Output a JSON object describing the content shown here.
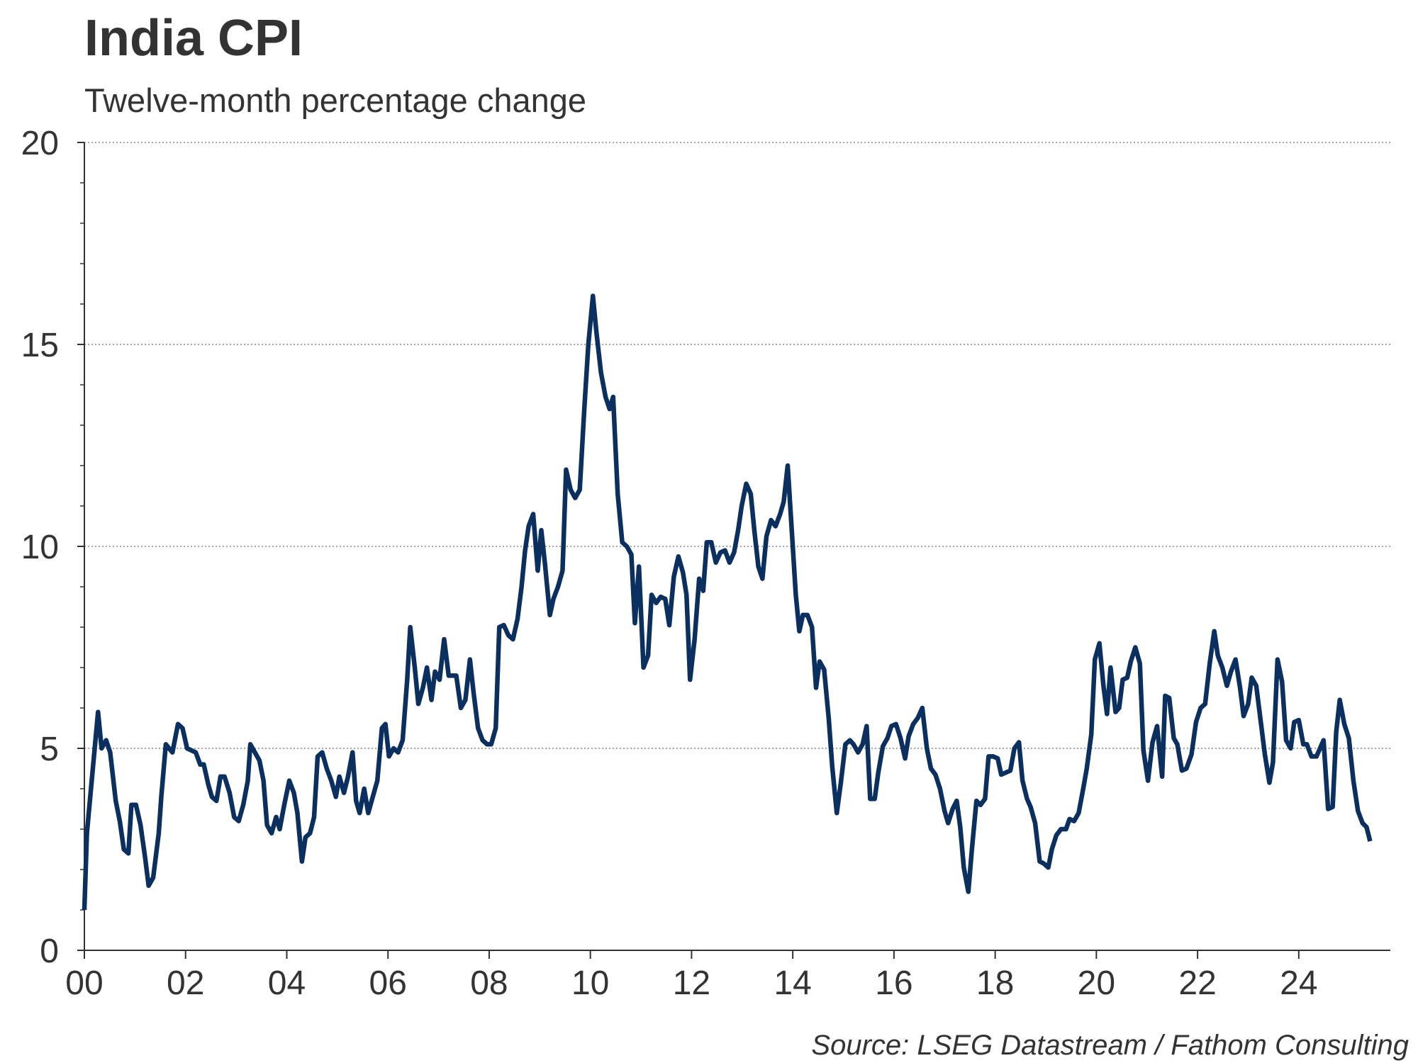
{
  "chart_data": {
    "type": "line",
    "title": "India CPI",
    "subtitle": "Twelve-month percentage change",
    "source": "Source: LSEG Datastream / Fathom Consulting",
    "color": "#0b2f5e",
    "grid": true,
    "xlim": [
      2000,
      2025.81
    ],
    "ylim": [
      0,
      20
    ],
    "yticks": [
      0,
      5,
      10,
      15,
      20
    ],
    "yminorticks": [
      1,
      2,
      3,
      4,
      6,
      7,
      8,
      9,
      11,
      12,
      13,
      14,
      16,
      17,
      18,
      19
    ],
    "xticks": [
      {
        "value": 2000,
        "label": "00"
      },
      {
        "value": 2002,
        "label": "02"
      },
      {
        "value": 2004,
        "label": "04"
      },
      {
        "value": 2006,
        "label": "06"
      },
      {
        "value": 2008,
        "label": "08"
      },
      {
        "value": 2010,
        "label": "10"
      },
      {
        "value": 2012,
        "label": "12"
      },
      {
        "value": 2014,
        "label": "14"
      },
      {
        "value": 2016,
        "label": "16"
      },
      {
        "value": 2018,
        "label": "18"
      },
      {
        "value": 2020,
        "label": "20"
      },
      {
        "value": 2022,
        "label": "22"
      },
      {
        "value": 2024,
        "label": "24"
      }
    ],
    "x": [
      2000.0,
      2000.05,
      2000.27,
      2000.34,
      2000.43,
      2000.51,
      2000.62,
      2000.7,
      2000.78,
      2000.87,
      2000.93,
      2001.02,
      2001.11,
      2001.2,
      2001.27,
      2001.36,
      2001.47,
      2001.52,
      2001.61,
      2001.74,
      2001.85,
      2001.94,
      2002.03,
      2002.2,
      2002.29,
      2002.36,
      2002.45,
      2002.52,
      2002.61,
      2002.69,
      2002.77,
      2002.87,
      2002.96,
      2003.05,
      2003.14,
      2003.23,
      2003.28,
      2003.37,
      2003.46,
      2003.54,
      2003.61,
      2003.7,
      2003.79,
      2003.86,
      2003.95,
      2004.05,
      2004.14,
      2004.21,
      2004.3,
      2004.37,
      2004.46,
      2004.54,
      2004.61,
      2004.7,
      2004.79,
      2004.88,
      2004.97,
      2005.04,
      2005.13,
      2005.21,
      2005.3,
      2005.37,
      2005.44,
      2005.53,
      2005.61,
      2005.7,
      2005.79,
      2005.88,
      2005.95,
      2006.02,
      2006.11,
      2006.2,
      2006.29,
      2006.38,
      2006.44,
      2006.53,
      2006.6,
      2006.69,
      2006.77,
      2006.86,
      2006.93,
      2007.02,
      2007.11,
      2007.2,
      2007.27,
      2007.35,
      2007.44,
      2007.53,
      2007.62,
      2007.69,
      2007.78,
      2007.87,
      2007.96,
      2008.04,
      2008.13,
      2008.2,
      2008.29,
      2008.38,
      2008.47,
      2008.56,
      2008.64,
      2008.71,
      2008.78,
      2008.87,
      2008.96,
      2009.03,
      2009.1,
      2009.2,
      2009.27,
      2009.36,
      2009.45,
      2009.52,
      2009.61,
      2009.7,
      2009.79,
      2009.88,
      2009.96,
      2010.05,
      2010.12,
      2010.21,
      2010.3,
      2010.38,
      2010.45,
      2010.54,
      2010.63,
      2010.72,
      2010.81,
      2010.88,
      2010.96,
      2011.05,
      2011.14,
      2011.21,
      2011.3,
      2011.39,
      2011.48,
      2011.56,
      2011.65,
      2011.74,
      2011.83,
      2011.9,
      2011.97,
      2012.06,
      2012.15,
      2012.23,
      2012.3,
      2012.39,
      2012.48,
      2012.57,
      2012.66,
      2012.75,
      2012.84,
      2012.92,
      2012.99,
      2013.08,
      2013.17,
      2013.24,
      2013.32,
      2013.4,
      2013.48,
      2013.57,
      2013.66,
      2013.75,
      2013.82,
      2013.9,
      2013.97,
      2014.06,
      2014.13,
      2014.2,
      2014.29,
      2014.38,
      2014.46,
      2014.53,
      2014.62,
      2014.71,
      2014.78,
      2014.87,
      2014.95,
      2015.04,
      2015.13,
      2015.2,
      2015.29,
      2015.38,
      2015.46,
      2015.53,
      2015.62,
      2015.69,
      2015.78,
      2015.87,
      2015.95,
      2016.04,
      2016.13,
      2016.22,
      2016.29,
      2016.38,
      2016.47,
      2016.56,
      2016.65,
      2016.73,
      2016.82,
      2016.91,
      2017.0,
      2017.07,
      2017.16,
      2017.24,
      2017.31,
      2017.38,
      2017.47,
      2017.54,
      2017.63,
      2017.71,
      2017.8,
      2017.87,
      2017.96,
      2018.05,
      2018.12,
      2018.21,
      2018.3,
      2018.38,
      2018.47,
      2018.54,
      2018.63,
      2018.7,
      2018.79,
      2018.88,
      2018.96,
      2019.05,
      2019.12,
      2019.21,
      2019.3,
      2019.4,
      2019.47,
      2019.56,
      2019.65,
      2019.74,
      2019.81,
      2019.9,
      2019.97,
      2020.06,
      2020.14,
      2020.21,
      2020.28,
      2020.38,
      2020.45,
      2020.52,
      2020.61,
      2020.68,
      2020.77,
      2020.86,
      2020.93,
      2021.02,
      2021.11,
      2021.2,
      2021.3,
      2021.36,
      2021.44,
      2021.53,
      2021.6,
      2021.69,
      2021.78,
      2021.88,
      2021.97,
      2022.06,
      2022.15,
      2022.24,
      2022.33,
      2022.4,
      2022.49,
      2022.58,
      2022.66,
      2022.75,
      2022.84,
      2022.91,
      2023.0,
      2023.07,
      2023.16,
      2023.26,
      2023.33,
      2023.42,
      2023.49,
      2023.58,
      2023.67,
      2023.75,
      2023.84,
      2023.91,
      2024.0,
      2024.09,
      2024.16,
      2024.25,
      2024.35,
      2024.42,
      2024.49,
      2024.58,
      2024.67,
      2024.74,
      2024.81,
      2024.9,
      2024.99,
      2025.08,
      2025.17,
      2025.26,
      2025.34,
      2025.41
    ],
    "values": [
      1.0,
      2.9,
      5.9,
      5.0,
      5.2,
      4.9,
      3.7,
      3.2,
      2.5,
      2.4,
      3.6,
      3.6,
      3.1,
      2.3,
      1.6,
      1.8,
      2.9,
      3.8,
      5.1,
      4.9,
      5.6,
      5.5,
      5.0,
      4.9,
      4.6,
      4.6,
      4.1,
      3.8,
      3.7,
      4.3,
      4.3,
      3.9,
      3.3,
      3.2,
      3.6,
      4.2,
      5.1,
      4.9,
      4.7,
      4.2,
      3.1,
      2.9,
      3.3,
      3.0,
      3.6,
      4.2,
      3.9,
      3.4,
      2.2,
      2.8,
      2.9,
      3.3,
      4.8,
      4.9,
      4.5,
      4.2,
      3.8,
      4.3,
      3.9,
      4.3,
      4.9,
      3.7,
      3.4,
      4.0,
      3.4,
      3.8,
      4.2,
      5.5,
      5.6,
      4.8,
      5.0,
      4.9,
      5.2,
      6.7,
      8.0,
      7.0,
      6.1,
      6.5,
      7.0,
      6.2,
      6.9,
      6.7,
      7.7,
      6.8,
      6.8,
      6.8,
      6.0,
      6.2,
      7.2,
      6.4,
      5.5,
      5.2,
      5.1,
      5.1,
      5.5,
      8.0,
      8.05,
      7.8,
      7.7,
      8.2,
      9.0,
      9.9,
      10.5,
      10.8,
      9.4,
      10.4,
      9.6,
      8.3,
      8.7,
      9.0,
      9.4,
      11.9,
      11.4,
      11.2,
      11.4,
      13.4,
      15.0,
      16.2,
      15.3,
      14.3,
      13.7,
      13.4,
      13.7,
      11.3,
      10.1,
      10.0,
      9.8,
      8.1,
      9.5,
      7.0,
      7.3,
      8.8,
      8.6,
      8.75,
      8.7,
      8.05,
      9.25,
      9.75,
      9.35,
      8.8,
      6.7,
      7.7,
      9.2,
      8.9,
      10.1,
      10.1,
      9.6,
      9.85,
      9.9,
      9.6,
      9.85,
      10.4,
      11.0,
      11.55,
      11.3,
      10.4,
      9.5,
      9.2,
      10.25,
      10.65,
      10.5,
      10.8,
      11.1,
      12.0,
      10.6,
      8.8,
      7.9,
      8.3,
      8.3,
      8.0,
      6.5,
      7.15,
      6.95,
      5.75,
      4.55,
      3.4,
      4.15,
      5.1,
      5.2,
      5.1,
      4.9,
      5.1,
      5.55,
      3.75,
      3.75,
      4.4,
      5.05,
      5.25,
      5.55,
      5.6,
      5.25,
      4.75,
      5.3,
      5.6,
      5.75,
      6.0,
      5.0,
      4.5,
      4.35,
      4.0,
      3.45,
      3.15,
      3.5,
      3.7,
      3.05,
      2.05,
      1.45,
      2.5,
      3.7,
      3.6,
      3.75,
      4.8,
      4.8,
      4.75,
      4.35,
      4.4,
      4.45,
      5.0,
      5.15,
      4.2,
      3.75,
      3.55,
      3.15,
      2.2,
      2.15,
      2.05,
      2.5,
      2.85,
      3.0,
      3.0,
      3.25,
      3.2,
      3.4,
      4.0,
      4.5,
      5.35,
      7.2,
      7.6,
      6.55,
      5.85,
      7.0,
      5.9,
      6.0,
      6.7,
      6.75,
      7.15,
      7.5,
      7.1,
      4.95,
      4.2,
      5.15,
      5.55,
      4.3,
      6.3,
      6.25,
      5.25,
      5.1,
      4.45,
      4.5,
      4.85,
      5.65,
      6.0,
      6.1,
      7.1,
      7.9,
      7.3,
      7.0,
      6.55,
      6.9,
      7.2,
      6.5,
      5.8,
      6.1,
      6.75,
      6.55,
      5.55,
      4.85,
      4.15,
      4.65,
      7.2,
      6.65,
      5.2,
      5.0,
      5.65,
      5.7,
      5.1,
      5.1,
      4.8,
      4.8,
      5.0,
      5.2,
      3.5,
      3.55,
      5.4,
      6.2,
      5.6,
      5.25,
      4.2,
      3.45,
      3.15,
      3.05,
      2.7
    ]
  }
}
